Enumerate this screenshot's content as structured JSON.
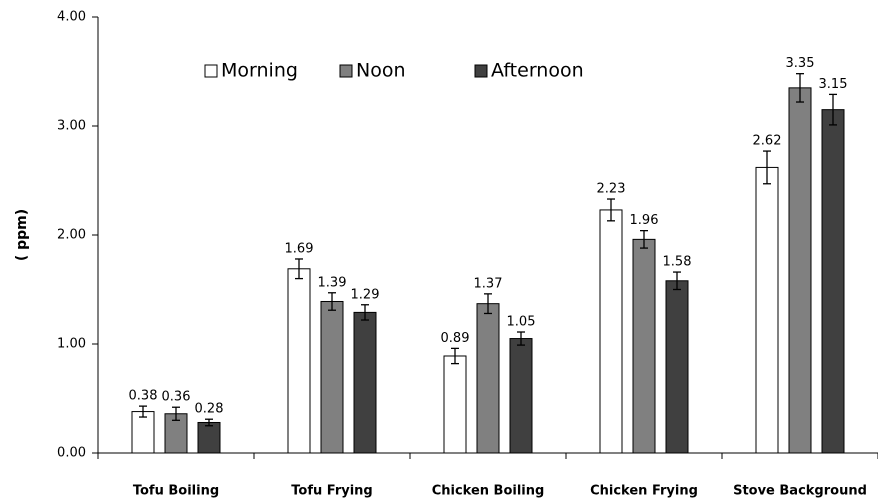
{
  "chart_data": {
    "type": "bar",
    "y_label": "( ppm)",
    "categories": [
      "Tofu Boiling",
      "Tofu Frying",
      "Chicken Boiling",
      "Chicken Frying",
      "Stove Background"
    ],
    "series": [
      {
        "name": "Morning",
        "color": "#ffffff",
        "values": [
          0.38,
          1.69,
          0.89,
          2.23,
          2.62
        ],
        "errors": [
          0.05,
          0.09,
          0.07,
          0.1,
          0.15
        ]
      },
      {
        "name": "Noon",
        "color": "#808080",
        "values": [
          0.36,
          1.39,
          1.37,
          1.96,
          3.35
        ],
        "errors": [
          0.06,
          0.08,
          0.09,
          0.08,
          0.13
        ]
      },
      {
        "name": "Afternoon",
        "color": "#404040",
        "values": [
          0.28,
          1.29,
          1.05,
          1.58,
          3.15
        ],
        "errors": [
          0.03,
          0.07,
          0.06,
          0.08,
          0.14
        ]
      }
    ],
    "ylim": [
      0,
      4
    ],
    "yticks": [
      {
        "value": 0,
        "label": "0.00"
      },
      {
        "value": 1,
        "label": "1.00"
      },
      {
        "value": 2,
        "label": "2.00"
      },
      {
        "value": 3,
        "label": "3.00"
      },
      {
        "value": 4,
        "label": "4.00"
      }
    ],
    "grid": false,
    "legend": "top"
  }
}
